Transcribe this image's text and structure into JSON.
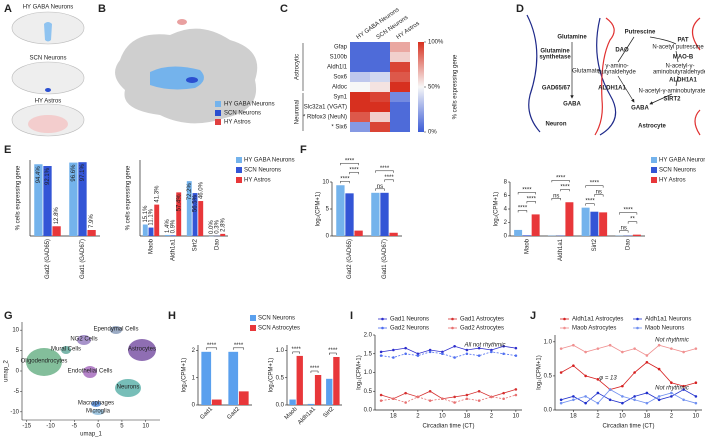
{
  "panel_labels": [
    "A",
    "B",
    "C",
    "D",
    "E",
    "F",
    "G",
    "H",
    "I",
    "J"
  ],
  "panel_A": {
    "labels": [
      "HY GABA Neurons",
      "SCN Neurons",
      "HY Astros"
    ]
  },
  "panel_B": {
    "legend": [
      {
        "name": "HY GABA Neurons",
        "color": "#74b3ec"
      },
      {
        "name": "SCN Neurons",
        "color": "#2b4fd0"
      },
      {
        "name": "HY Astros",
        "color": "#e04040"
      }
    ]
  },
  "panel_D": {
    "neuron": {
      "title": "Neuron",
      "texts": [
        "Glutamine",
        "Glutamine",
        "synthetase",
        "Glutamate",
        "GAD65/67",
        "GABA"
      ]
    },
    "astrocyte": {
      "title": "Astrocyte",
      "texts": [
        "Putrescine",
        "PAT",
        "N-acetyl putrescine",
        "DAO",
        "MAO-B",
        "γ-amino-",
        "butyraldehyde",
        "N-acetyl-γ-",
        "aminobutyraldehyde",
        "ALDH1A1",
        "ALDH1A1",
        "N-acetyl-γ-aminobutyrate",
        "SIRT2",
        "GABA"
      ]
    }
  },
  "chart_data": [
    {
      "type": "heatmap",
      "columns": [
        "HY GABA Neurons",
        "SCN Neurons",
        "HY Astros"
      ],
      "rows": [
        "Gfap",
        "S100b",
        "Aldh1l1",
        "Sox6",
        "Aldoc",
        "Syn1",
        "Slc32a1 (VGAT)",
        "* Rbfox3 (NeuN)",
        "* Six6"
      ],
      "groups": [
        "Astrocytic",
        "Neuronal"
      ],
      "values": [
        [
          5,
          5,
          70
        ],
        [
          5,
          5,
          60
        ],
        [
          5,
          5,
          95
        ],
        [
          35,
          40,
          90
        ],
        [
          50,
          55,
          100
        ],
        [
          100,
          95,
          15
        ],
        [
          100,
          100,
          5
        ],
        [
          90,
          60,
          5
        ],
        [
          20,
          95,
          5
        ]
      ],
      "zlim": [
        0,
        100
      ],
      "colors": [
        "#3b5bd6",
        "#f7f7f7",
        "#d7301f"
      ],
      "colorbar_ticks": [
        {
          "value": 0,
          "label": "0%"
        },
        {
          "value": 50,
          "label": "50%"
        },
        {
          "value": 100,
          "label": "100%"
        }
      ],
      "colorbar_label": "% cells expressing gene"
    },
    {
      "type": "bar",
      "ylabel": "% cells expressing gene",
      "categories": [
        "Gad2 (GAD65)",
        "Gad1 (GAD67)"
      ],
      "ylim": [
        0,
        100
      ],
      "series": [
        {
          "color": "#74b3ec",
          "values": [
            94.4,
            96.6
          ],
          "value_labels": [
            "94.4%",
            "96.6%"
          ]
        },
        {
          "color": "#3355d6",
          "values": [
            92.1,
            97.1
          ],
          "value_labels": [
            "92.1%",
            "97.1%"
          ]
        },
        {
          "color": "#e8373a",
          "values": [
            12.8,
            7.9
          ],
          "value_labels": [
            "12.8%",
            "7.9%"
          ]
        }
      ]
    },
    {
      "type": "bar",
      "ylabel": "% cells expressing gene",
      "categories": [
        "Maob",
        "Aldh1a1",
        "Sirt2",
        "Dao"
      ],
      "ylim": [
        0,
        100
      ],
      "series": [
        {
          "name": "HY GABA Neurons",
          "color": "#74b3ec",
          "values": [
            15.1,
            1.4,
            72.2,
            0.0
          ],
          "value_labels": [
            "15.1%",
            "1.4%",
            "72.2%",
            "0.0%"
          ]
        },
        {
          "name": "SCN Neurons",
          "color": "#3355d6",
          "values": [
            11.1,
            0.9,
            56.5,
            0.3
          ],
          "value_labels": [
            "11.1%",
            "0.9%",
            "56.5%",
            "0.3%"
          ]
        },
        {
          "name": "HY Astros",
          "color": "#e8373a",
          "values": [
            41.3,
            57.4,
            46.0,
            2.8
          ],
          "value_labels": [
            "41.3%",
            "57.4%",
            "46.0%",
            "2.8%"
          ]
        }
      ]
    },
    {
      "type": "bar",
      "ylabel": "log₂(CPM+1)",
      "categories": [
        "Gad2 (GAD65)",
        "Gad1 (GAD67)"
      ],
      "ylim": [
        0,
        10
      ],
      "yticks": [
        0,
        5,
        10
      ],
      "series": [
        {
          "color": "#74b3ec",
          "values": [
            9.4,
            8.0
          ]
        },
        {
          "color": "#3355d6",
          "values": [
            7.9,
            8.0
          ]
        },
        {
          "color": "#e8373a",
          "values": [
            1.0,
            0.6
          ]
        }
      ],
      "annotations": [
        "****",
        "****",
        "****",
        "ns",
        "****",
        "****"
      ]
    },
    {
      "type": "bar",
      "ylabel": "log₂(CPM+1)",
      "categories": [
        "Maob",
        "Aldh1a1",
        "Sirt2",
        "Dao"
      ],
      "ylim": [
        0,
        8
      ],
      "yticks": [
        0,
        2,
        4,
        6,
        8
      ],
      "series": [
        {
          "name": "HY GABA Neurons",
          "color": "#74b3ec",
          "values": [
            0.9,
            0.05,
            4.2,
            0.05
          ]
        },
        {
          "name": "SCN Neurons",
          "color": "#3355d6",
          "values": [
            0.1,
            0.05,
            3.6,
            0.05
          ]
        },
        {
          "name": "HY Astros",
          "color": "#e8373a",
          "values": [
            3.2,
            5.0,
            3.5,
            0.2
          ]
        }
      ],
      "annotations": [
        "****",
        "****",
        "****",
        "ns",
        "****",
        "****",
        "****",
        "ns",
        "****",
        "ns",
        "**",
        "****"
      ]
    },
    {
      "type": "umap",
      "xlabel": "umap_1",
      "ylabel": "umap_2",
      "xlim": [
        -16,
        13
      ],
      "ylim": [
        -12,
        12
      ],
      "xticks": [
        -15,
        -10,
        -5,
        0,
        5,
        10
      ],
      "yticks": [
        -10,
        -5,
        0,
        5,
        10
      ],
      "clusters": [
        {
          "label": "Oligodendrocytes",
          "color": "#5aa87a"
        },
        {
          "label": "Mural Cells",
          "color": "#4f9d8f"
        },
        {
          "label": "NG2 Cells",
          "color": "#8a6fb8"
        },
        {
          "label": "Ependymal Cells",
          "color": "#7a8fb0"
        },
        {
          "label": "Endothelial Cells",
          "color": "#9b59b6"
        },
        {
          "label": "Astrocytes",
          "color": "#6a3d9a"
        },
        {
          "label": "Neurons",
          "color": "#4aa8a0"
        },
        {
          "label": "Macrophages",
          "color": "#3a7bd5"
        },
        {
          "label": "Microglia",
          "color": "#7fb3d5"
        }
      ]
    },
    {
      "type": "bar",
      "ylabel": "log₂(CPM+1)",
      "categories": [
        "Gad1",
        "Gad2"
      ],
      "ylim": [
        0,
        2.2
      ],
      "yticks": [
        0,
        1,
        2
      ],
      "series": [
        {
          "name": "SCN Neurons",
          "color": "#5aa0ee",
          "values": [
            1.95,
            1.95
          ]
        },
        {
          "name": "SCN Astrocytes",
          "color": "#e8373a",
          "values": [
            0.2,
            0.5
          ]
        }
      ],
      "annotations": [
        "****",
        "****"
      ]
    },
    {
      "type": "bar",
      "ylabel": "log₂(CPM+1)",
      "categories": [
        "Maob",
        "Aldh1a1",
        "Sirt2"
      ],
      "ylim": [
        0,
        1.1
      ],
      "yticks": [
        {
          "value": 0,
          "label": "0.0"
        },
        {
          "value": 0.5,
          "label": "0.5"
        },
        {
          "value": 1,
          "label": "1.0"
        }
      ],
      "series": [
        {
          "color": "#5aa0ee",
          "values": [
            0.1,
            0.02,
            0.48
          ]
        },
        {
          "color": "#e8373a",
          "values": [
            0.9,
            0.55,
            0.88
          ]
        }
      ],
      "annotations": [
        "****",
        "****",
        "****"
      ]
    },
    {
      "type": "line",
      "ylabel": "log₂(CPM+1)",
      "xlabel": "Circadian time (CT)",
      "categories": [
        null,
        "18",
        null,
        "2",
        null,
        "10",
        null,
        "18",
        null,
        "2",
        null,
        "10"
      ],
      "ylim": [
        0,
        2
      ],
      "yticks": [
        {
          "value": 0,
          "label": "0.0"
        },
        {
          "value": 0.5,
          "label": "0.5"
        },
        {
          "value": 1,
          "label": "1.0"
        },
        {
          "value": 1.5,
          "label": "1.5"
        },
        {
          "value": 2,
          "label": "2.0"
        }
      ],
      "series": [
        {
          "name": "Gad1 Neurons",
          "color": "#2d2dcc",
          "dash": false,
          "values": [
            1.55,
            1.6,
            1.65,
            1.5,
            1.6,
            1.55,
            1.7,
            1.6,
            1.65,
            1.6,
            1.7,
            1.65
          ]
        },
        {
          "name": "Gad2 Neurons",
          "color": "#4f6ef0",
          "dash": true,
          "values": [
            1.45,
            1.4,
            1.5,
            1.45,
            1.55,
            1.5,
            1.4,
            1.5,
            1.45,
            1.55,
            1.5,
            1.45
          ]
        },
        {
          "name": "Gad1 Astrocytes",
          "color": "#d63030",
          "dash": false,
          "values": [
            0.4,
            0.3,
            0.45,
            0.35,
            0.5,
            0.3,
            0.35,
            0.4,
            0.5,
            0.35,
            0.45,
            0.55
          ]
        },
        {
          "name": "Gad2 Astrocytes",
          "color": "#e77070",
          "dash": true,
          "values": [
            0.25,
            0.3,
            0.2,
            0.35,
            0.25,
            0.3,
            0.2,
            0.3,
            0.25,
            0.35,
            0.3,
            0.4
          ]
        }
      ],
      "annotations": [
        {
          "text": "All not rhythmic",
          "color": "#222222"
        }
      ]
    },
    {
      "type": "line",
      "ylabel": "log₂(CPM+1)",
      "xlabel": "Circadian time (CT)",
      "categories": [
        null,
        "18",
        null,
        "2",
        null,
        "10",
        null,
        "18",
        null,
        "2",
        null,
        "10"
      ],
      "ylim": [
        0,
        1.1
      ],
      "yticks": [
        {
          "value": 0,
          "label": "0.0"
        },
        {
          "value": 0.5,
          "label": "0.5"
        },
        {
          "value": 1,
          "label": "1.0"
        }
      ],
      "series": [
        {
          "name": "Aldh1a1 Astrocytes",
          "color": "#d62020",
          "dash": false,
          "values": [
            0.55,
            0.65,
            0.5,
            0.45,
            0.3,
            0.35,
            0.55,
            0.7,
            0.6,
            0.4,
            0.35,
            0.4
          ]
        },
        {
          "name": "Maob Astrocytes",
          "color": "#f09090",
          "dash": false,
          "values": [
            0.9,
            0.95,
            0.85,
            0.9,
            0.95,
            0.85,
            0.9,
            0.8,
            0.95,
            0.9,
            0.85,
            0.9
          ]
        },
        {
          "name": "Aldh1a1 Neurons",
          "color": "#2030cc",
          "dash": false,
          "values": [
            0.15,
            0.2,
            0.1,
            0.25,
            0.15,
            0.1,
            0.2,
            0.25,
            0.15,
            0.2,
            0.3,
            0.2
          ]
        },
        {
          "name": "Maob Neurons",
          "color": "#7090f0",
          "dash": false,
          "values": [
            0.1,
            0.15,
            0.2,
            0.1,
            0.3,
            0.2,
            0.15,
            0.1,
            0.2,
            0.25,
            0.15,
            0.1
          ]
        }
      ],
      "annotations": [
        {
          "text": "Not rhythmic",
          "color": "#f08080"
        },
        {
          "text": "φ = 13",
          "color": "#cc2222"
        },
        {
          "text": "Not rhythmic",
          "color": "#2233cc"
        }
      ]
    }
  ]
}
